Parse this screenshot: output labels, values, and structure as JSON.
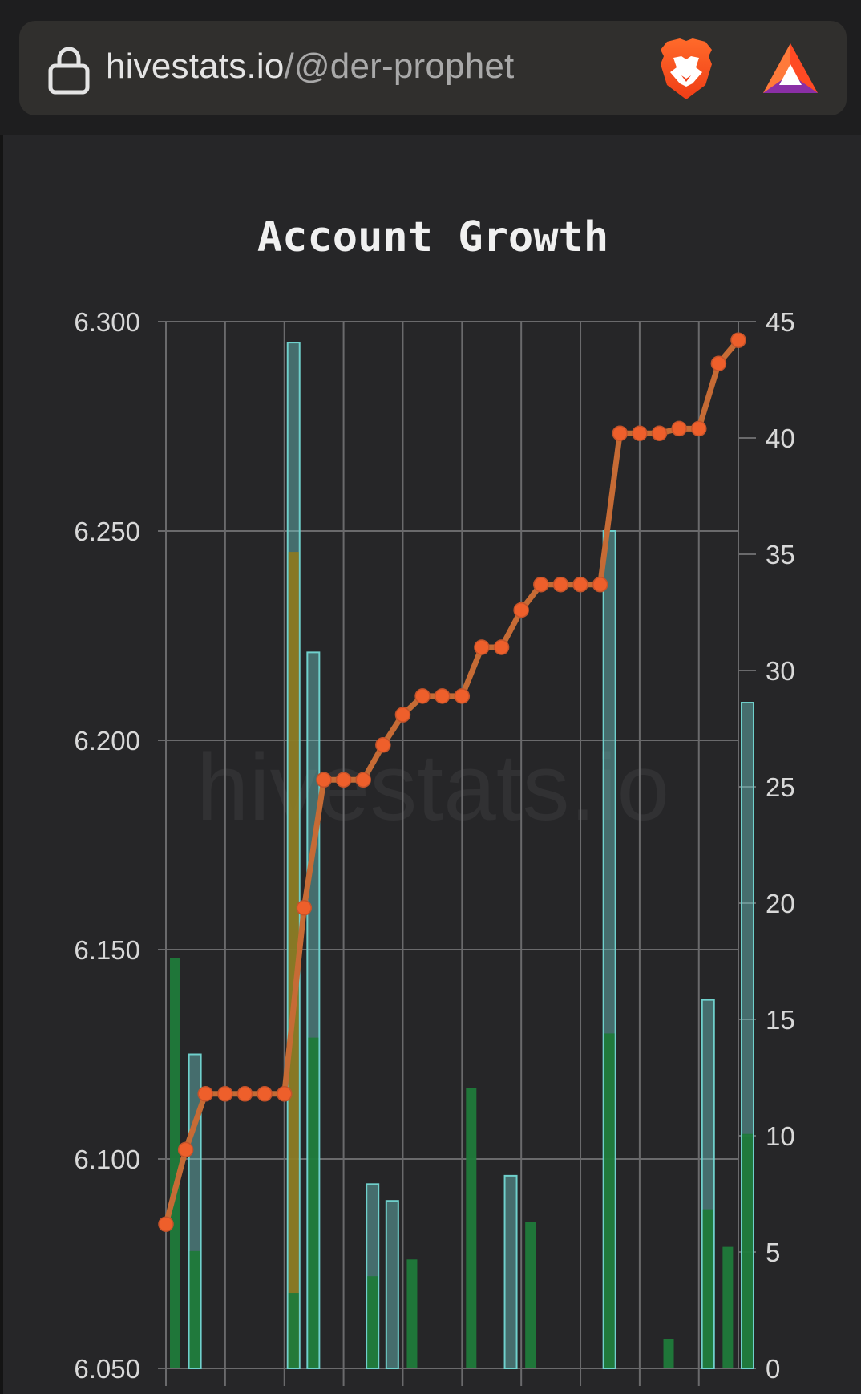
{
  "browser": {
    "url_host": "hivestats.io",
    "url_path": "/@der-prophet"
  },
  "chart_data": {
    "type": "bar+line",
    "title": "Account Growth",
    "watermark": "hivestats.io",
    "left_axis": {
      "ticks": [
        "6.300",
        "6.250",
        "6.200",
        "6.150",
        "6.100",
        "6.050"
      ],
      "ylim": [
        6.05,
        6.3
      ]
    },
    "right_axis": {
      "ticks": [
        "45",
        "40",
        "35",
        "30",
        "25",
        "20",
        "15",
        "10",
        "5",
        "0"
      ],
      "ylim": [
        0,
        45
      ]
    },
    "grid": true,
    "colors": {
      "line": "#c66b35",
      "point": "#ee5f2b",
      "green": "#1f7a3a",
      "cyan": "#6fd0cc",
      "olive": "#8d7a20"
    },
    "line_series": [
      6.2,
      9.4,
      11.8,
      11.8,
      11.8,
      11.8,
      11.8,
      19.8,
      25.3,
      25.3,
      25.3,
      26.8,
      28.1,
      28.9,
      28.9,
      28.9,
      31.0,
      31.0,
      32.6,
      33.7,
      33.7,
      33.7,
      33.7,
      40.2,
      40.2,
      40.2,
      40.4,
      40.4,
      43.2,
      44.2
    ],
    "bars": [
      {
        "i": 0,
        "green": 6.148
      },
      {
        "i": 1,
        "cyan": 6.125,
        "green": 6.078
      },
      {
        "i": 6,
        "cyan": 6.295,
        "olive": 6.245,
        "green": 6.068
      },
      {
        "i": 7,
        "cyan": 6.221,
        "green": 6.129
      },
      {
        "i": 10,
        "cyan": 6.094,
        "green": 6.072
      },
      {
        "i": 11,
        "cyan": 6.09
      },
      {
        "i": 12,
        "green": 6.076
      },
      {
        "i": 15,
        "green": 6.117
      },
      {
        "i": 17,
        "cyan": 6.096
      },
      {
        "i": 18,
        "green": 6.085
      },
      {
        "i": 22,
        "cyan": 6.25,
        "green": 6.13
      },
      {
        "i": 25,
        "green": 6.057
      },
      {
        "i": 27,
        "cyan": 6.138,
        "green": 6.088
      },
      {
        "i": 28,
        "green": 6.079
      },
      {
        "i": 29,
        "cyan": 6.209,
        "green": 6.106
      }
    ]
  }
}
